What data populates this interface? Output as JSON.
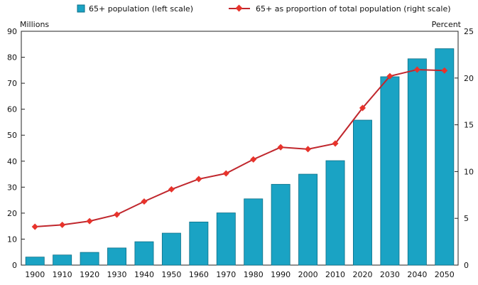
{
  "chart_data": {
    "type": "bar+line",
    "categories": [
      "1900",
      "1910",
      "1920",
      "1930",
      "1940",
      "1950",
      "1960",
      "1970",
      "1980",
      "1990",
      "2000",
      "2010",
      "2020",
      "2030",
      "2040",
      "2050"
    ],
    "series": [
      {
        "name": "65+ population (left scale)",
        "type": "bar",
        "axis": "left",
        "values": [
          3.1,
          3.9,
          4.9,
          6.6,
          9.0,
          12.3,
          16.6,
          20.1,
          25.5,
          31.1,
          35.0,
          40.2,
          55.8,
          72.5,
          79.4,
          83.3
        ],
        "color": "#1aa3c4"
      },
      {
        "name": "65+ as proportion of total population (right scale)",
        "type": "line",
        "axis": "right",
        "values": [
          4.1,
          4.3,
          4.7,
          5.4,
          6.8,
          8.1,
          9.2,
          9.8,
          11.3,
          12.6,
          12.4,
          13.0,
          16.8,
          20.2,
          20.9,
          20.8
        ],
        "color": "#c0272d"
      }
    ],
    "left_axis": {
      "label": "Millions",
      "range": [
        0,
        90
      ],
      "ticks": [
        "0",
        "10",
        "20",
        "30",
        "40",
        "50",
        "60",
        "70",
        "80",
        "90"
      ]
    },
    "right_axis": {
      "label": "Percent",
      "range": [
        0,
        25
      ],
      "ticks": [
        "0",
        "5",
        "10",
        "15",
        "20",
        "25"
      ]
    },
    "legend_position": "top",
    "grid": false
  }
}
